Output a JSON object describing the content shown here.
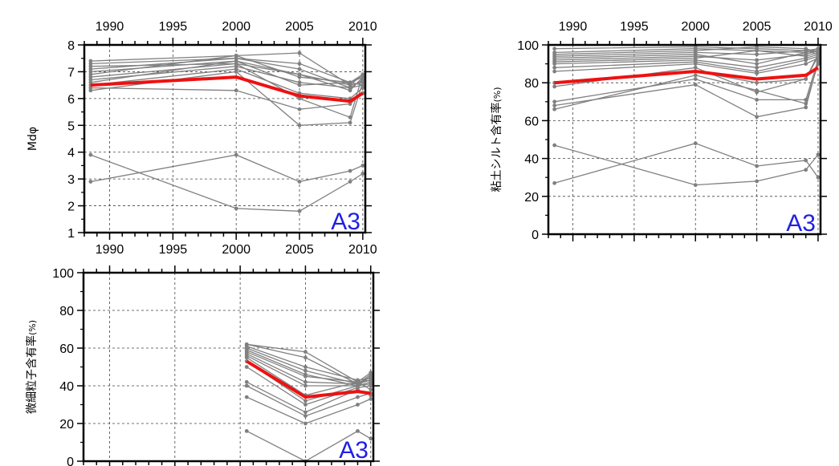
{
  "chart_data": [
    {
      "id": "p1",
      "type": "line",
      "ylabel": "Mdφ",
      "panel_label": "A3",
      "xlim": [
        1988,
        2010.2
      ],
      "ylim": [
        1,
        8
      ],
      "xticks_top": [
        1990,
        1995,
        2000,
        2005,
        2010
      ],
      "xticks_bottom": [
        1990,
        1995,
        2000,
        2005,
        2010
      ],
      "yticks": [
        1,
        2,
        3,
        4,
        5,
        6,
        7,
        8
      ],
      "grid": true,
      "x": [
        1988.5,
        2000,
        2005,
        2009,
        2010
      ],
      "gray_color": "#808080",
      "mean_color": "#ee1111",
      "gray_series": [
        [
          7.4,
          7.6,
          7.7,
          6.5,
          6.9
        ],
        [
          7.3,
          7.5,
          7.3,
          6.6,
          6.8
        ],
        [
          7.1,
          7.5,
          7.1,
          6.4,
          6.7
        ],
        [
          7.0,
          7.4,
          6.9,
          6.5,
          6.6
        ],
        [
          6.9,
          7.6,
          6.8,
          6.6,
          6.5
        ],
        [
          6.8,
          7.3,
          6.9,
          6.3,
          6.8
        ],
        [
          6.7,
          7.2,
          6.6,
          6.4,
          6.5
        ],
        [
          6.6,
          7.4,
          6.5,
          6.6,
          6.9
        ],
        [
          6.5,
          7.1,
          6.2,
          6.0,
          6.4
        ],
        [
          6.4,
          6.3,
          5.6,
          5.8,
          6.2
        ],
        [
          6.3,
          7.0,
          5.0,
          5.1,
          6.6
        ],
        [
          7.2,
          7.3,
          6.0,
          5.3,
          6.9
        ],
        [
          3.9,
          1.9,
          1.8,
          2.9,
          3.2
        ],
        [
          2.9,
          3.9,
          2.9,
          3.3,
          3.5
        ]
      ],
      "mean_series": [
        6.5,
        6.8,
        6.1,
        5.9,
        6.2
      ]
    },
    {
      "id": "p2",
      "type": "line",
      "ylabel": "粘土シルト含有率",
      "ylabel_unit": "(%)",
      "panel_label": "A3",
      "xlim": [
        1988,
        2010.2
      ],
      "ylim": [
        0,
        100
      ],
      "xticks_top": [
        1990,
        1995,
        2000,
        2005,
        2010
      ],
      "yticks": [
        0,
        20,
        40,
        60,
        80,
        100
      ],
      "grid": true,
      "x": [
        1988.5,
        2000,
        2005,
        2009,
        2010
      ],
      "gray_color": "#808080",
      "mean_color": "#ee1111",
      "gray_series": [
        [
          98,
          99,
          98,
          97,
          98
        ],
        [
          96,
          98,
          97,
          96,
          97
        ],
        [
          95,
          97,
          99,
          98,
          96
        ],
        [
          94,
          96,
          95,
          97,
          95
        ],
        [
          93,
          95,
          90,
          96,
          98
        ],
        [
          92,
          94,
          92,
          95,
          97
        ],
        [
          91,
          93,
          97,
          94,
          96
        ],
        [
          90,
          92,
          88,
          93,
          95
        ],
        [
          88,
          91,
          86,
          92,
          94
        ],
        [
          86,
          90,
          85,
          90,
          93
        ],
        [
          80,
          86,
          80,
          82,
          95
        ],
        [
          78,
          88,
          75,
          82,
          94
        ],
        [
          70,
          82,
          71,
          71,
          92
        ],
        [
          68,
          79,
          62,
          67,
          91
        ],
        [
          66,
          84,
          76,
          69,
          90
        ],
        [
          47,
          26,
          28,
          34,
          42
        ],
        [
          27,
          48,
          36,
          39,
          30
        ]
      ],
      "mean_series": [
        80,
        86,
        82,
        84,
        88
      ]
    },
    {
      "id": "p3",
      "type": "line",
      "ylabel": "微細粒子含有率",
      "ylabel_unit": "(%)",
      "panel_label": "A3",
      "xlim": [
        1988,
        2010.2
      ],
      "ylim": [
        0,
        100
      ],
      "yticks": [
        0,
        20,
        40,
        60,
        80,
        100
      ],
      "grid": true,
      "x": [
        2000.5,
        2005,
        2009,
        2010
      ],
      "gray_color": "#808080",
      "mean_color": "#ee1111",
      "gray_series": [
        [
          62,
          58,
          42,
          43
        ],
        [
          61,
          50,
          43,
          44
        ],
        [
          60,
          48,
          41,
          46
        ],
        [
          59,
          46,
          40,
          45
        ],
        [
          58,
          45,
          42,
          47
        ],
        [
          57,
          42,
          41,
          43
        ],
        [
          56,
          40,
          40,
          42
        ],
        [
          55,
          35,
          42,
          38
        ],
        [
          53,
          32,
          40,
          41
        ],
        [
          50,
          30,
          39,
          40
        ],
        [
          42,
          26,
          38,
          35
        ],
        [
          40,
          24,
          34,
          36
        ],
        [
          34,
          20,
          30,
          33
        ],
        [
          16,
          0,
          16,
          12
        ],
        [
          62,
          55,
          41,
          45
        ]
      ],
      "mean_series": [
        53,
        34,
        37,
        36
      ]
    }
  ]
}
